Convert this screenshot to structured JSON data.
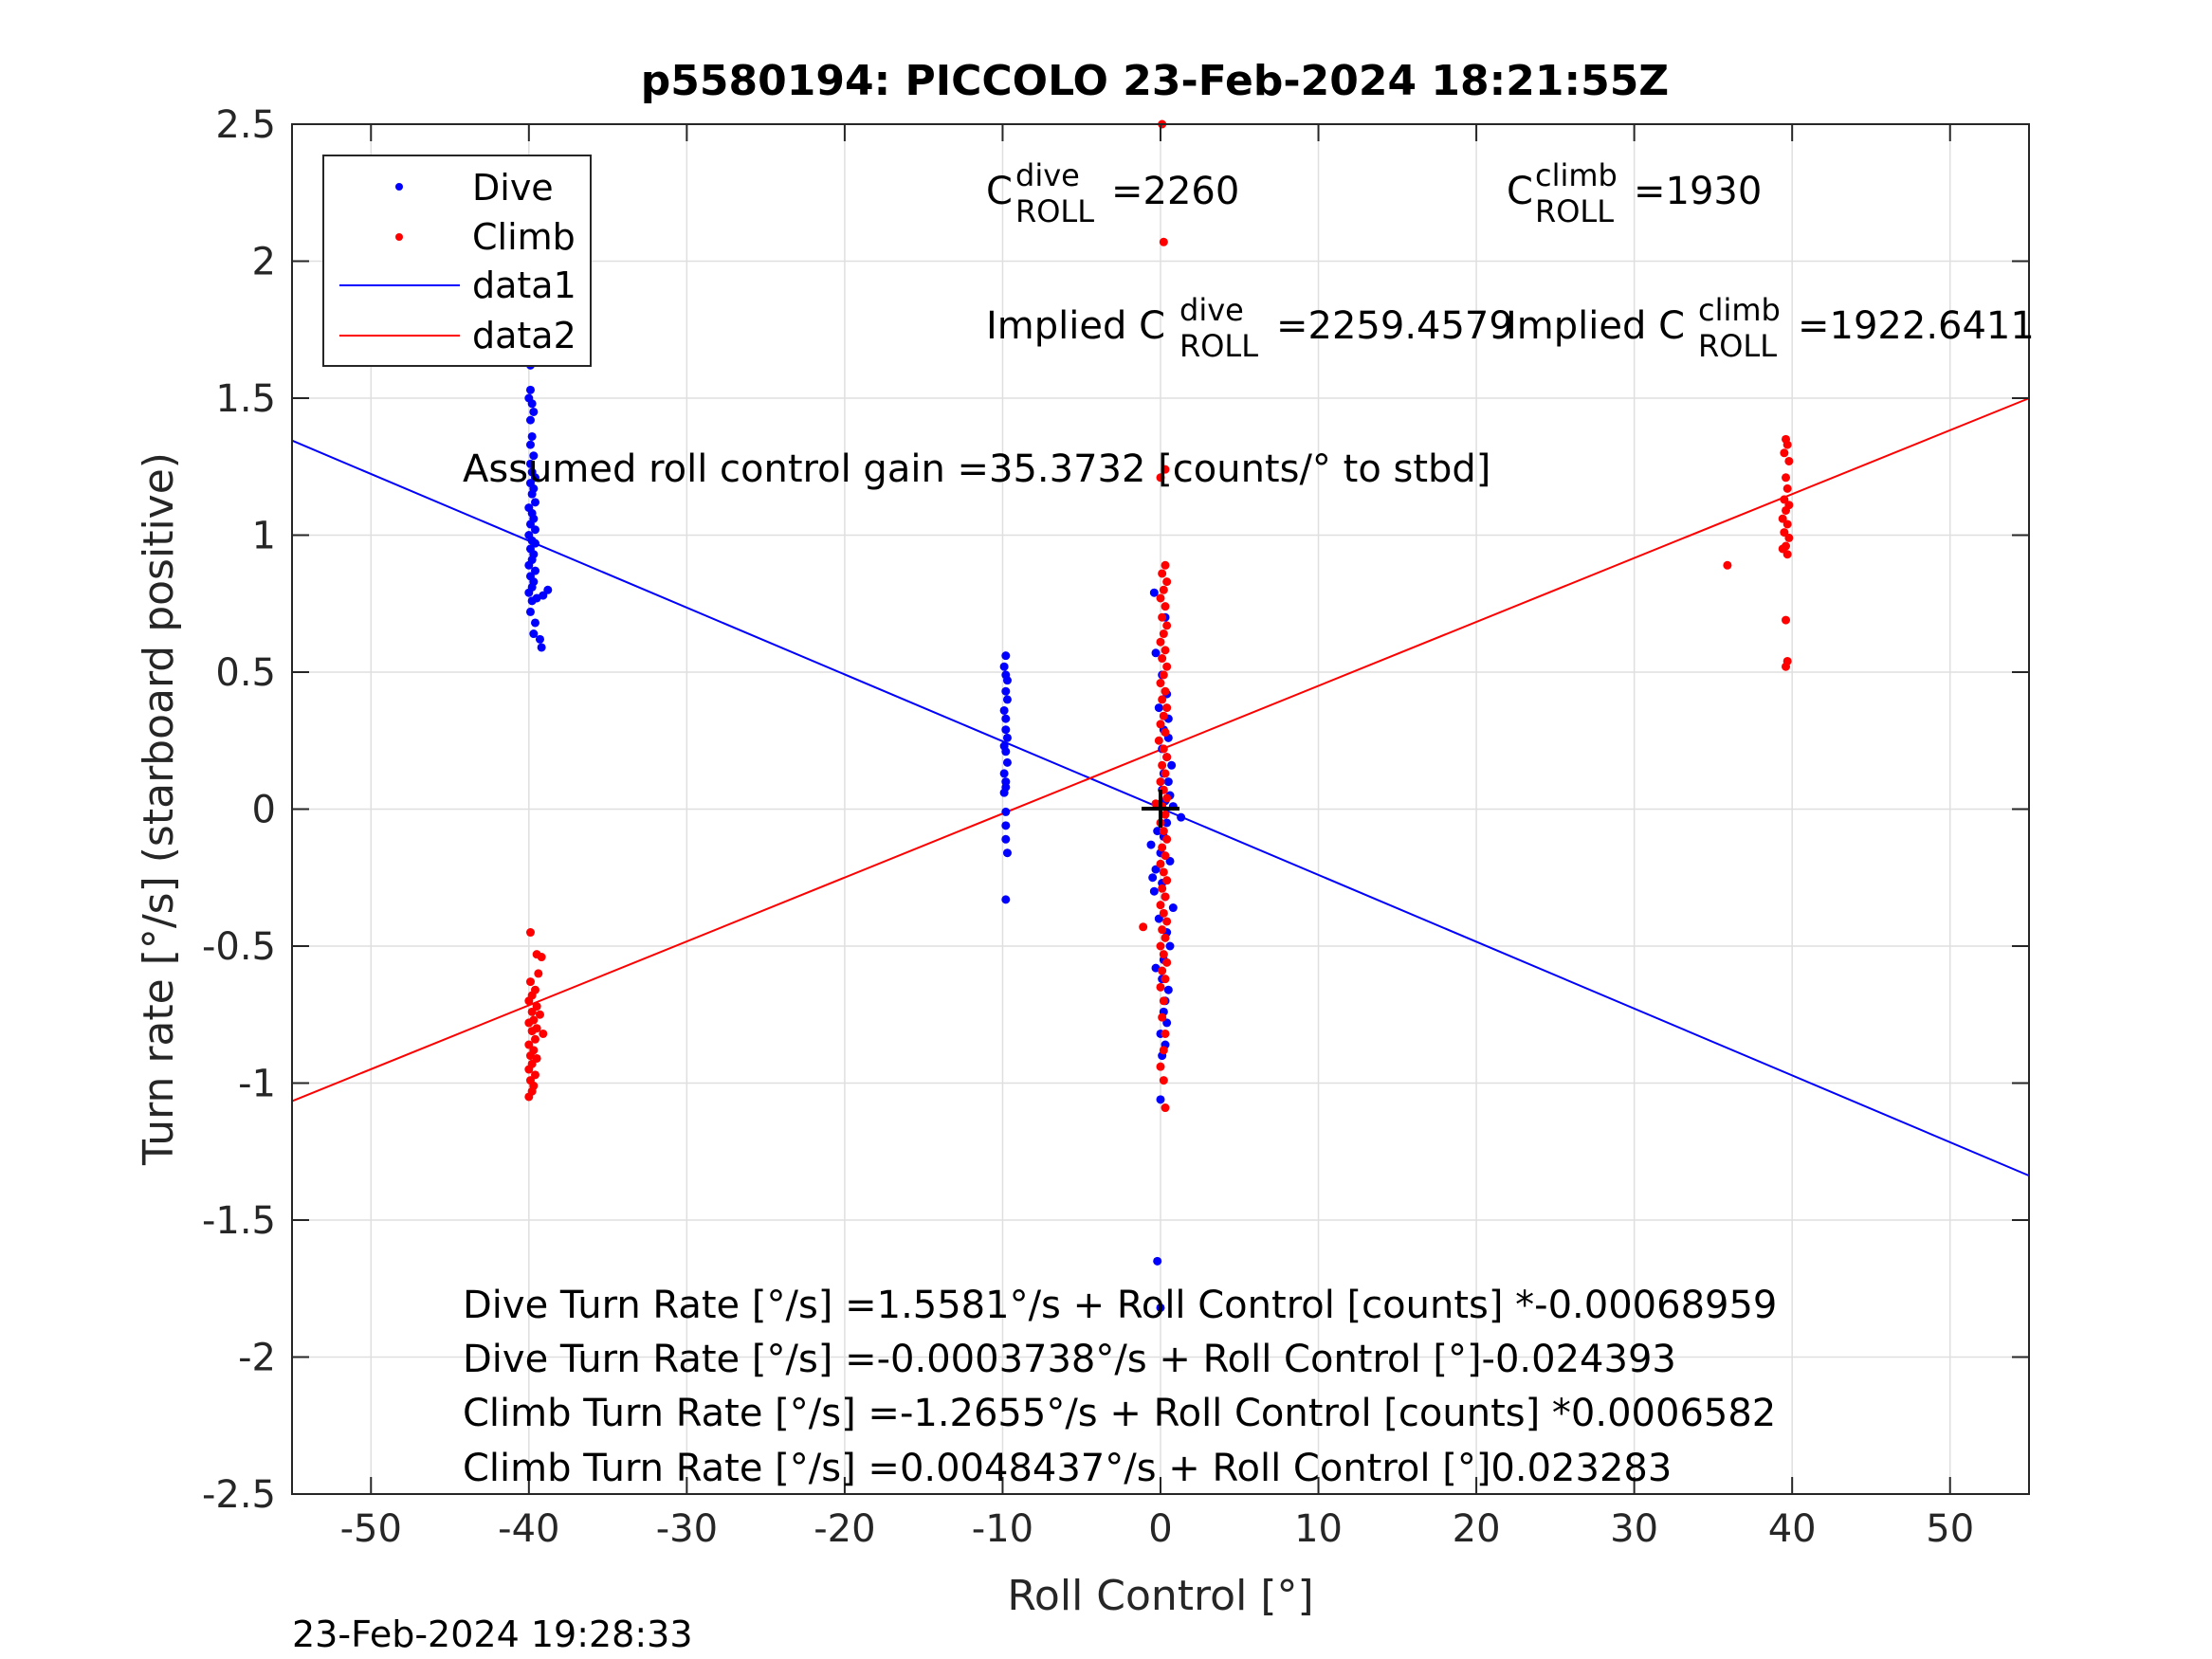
{
  "figure": {
    "timestamp": "23-Feb-2024 19:28:33"
  },
  "chart_data": {
    "type": "scatter",
    "title": "p5580194: PICCOLO 23-Feb-2024 18:21:55Z",
    "xlabel": "Roll Control [°]",
    "ylabel": "Turn rate [°/s] (starboard positive)",
    "xlim": [
      -55,
      55
    ],
    "ylim": [
      -2.5,
      2.5
    ],
    "xticks": [
      -50,
      -40,
      -30,
      -20,
      -10,
      0,
      10,
      20,
      30,
      40,
      50
    ],
    "yticks": [
      -2.5,
      -2,
      -1.5,
      -1,
      -0.5,
      0,
      0.5,
      1,
      1.5,
      2,
      2.5
    ],
    "grid": true,
    "legend": {
      "placement": "top-left",
      "entries": [
        "Dive",
        "Climb",
        "data1",
        "data2"
      ]
    },
    "colors": {
      "dive": "#0000ff",
      "climb": "#ff0000",
      "zero_marker": "#000000"
    },
    "series": [
      {
        "name": "Dive",
        "kind": "points",
        "points": [
          [
            -39.9,
            1.62
          ],
          [
            -39.9,
            1.53
          ],
          [
            -40.0,
            1.5
          ],
          [
            -39.8,
            1.48
          ],
          [
            -39.7,
            1.45
          ],
          [
            -39.9,
            1.42
          ],
          [
            -39.8,
            1.36
          ],
          [
            -39.9,
            1.33
          ],
          [
            -39.7,
            1.29
          ],
          [
            -39.9,
            1.26
          ],
          [
            -39.8,
            1.23
          ],
          [
            -39.6,
            1.21
          ],
          [
            -39.9,
            1.19
          ],
          [
            -39.7,
            1.17
          ],
          [
            -39.8,
            1.15
          ],
          [
            -39.6,
            1.12
          ],
          [
            -40.0,
            1.1
          ],
          [
            -39.8,
            1.08
          ],
          [
            -39.7,
            1.06
          ],
          [
            -39.9,
            1.04
          ],
          [
            -39.6,
            1.02
          ],
          [
            -40.0,
            1.0
          ],
          [
            -39.8,
            0.98
          ],
          [
            -39.6,
            0.97
          ],
          [
            -39.9,
            0.95
          ],
          [
            -39.7,
            0.93
          ],
          [
            -39.8,
            0.91
          ],
          [
            -40.0,
            0.89
          ],
          [
            -39.6,
            0.87
          ],
          [
            -39.9,
            0.85
          ],
          [
            -39.7,
            0.83
          ],
          [
            -39.8,
            0.81
          ],
          [
            -40.0,
            0.79
          ],
          [
            -39.5,
            0.77
          ],
          [
            -39.8,
            0.76
          ],
          [
            -39.1,
            0.78
          ],
          [
            -38.8,
            0.8
          ],
          [
            -39.9,
            0.72
          ],
          [
            -39.6,
            0.68
          ],
          [
            -39.7,
            0.64
          ],
          [
            -39.3,
            0.62
          ],
          [
            -39.2,
            0.59
          ],
          [
            -9.8,
            0.56
          ],
          [
            -9.9,
            0.52
          ],
          [
            -9.8,
            0.49
          ],
          [
            -9.7,
            0.47
          ],
          [
            -9.8,
            0.43
          ],
          [
            -9.7,
            0.4
          ],
          [
            -9.9,
            0.36
          ],
          [
            -9.8,
            0.33
          ],
          [
            -9.8,
            0.29
          ],
          [
            -9.7,
            0.26
          ],
          [
            -9.9,
            0.23
          ],
          [
            -9.8,
            0.21
          ],
          [
            -9.7,
            0.17
          ],
          [
            -9.9,
            0.13
          ],
          [
            -9.8,
            0.1
          ],
          [
            -9.8,
            0.08
          ],
          [
            -9.9,
            0.06
          ],
          [
            -9.8,
            -0.01
          ],
          [
            -9.8,
            -0.06
          ],
          [
            -9.8,
            -0.11
          ],
          [
            -9.7,
            -0.16
          ],
          [
            -9.8,
            -0.33
          ],
          [
            -0.4,
            0.79
          ],
          [
            0.3,
            0.7
          ],
          [
            -0.3,
            0.57
          ],
          [
            0.1,
            0.49
          ],
          [
            0.4,
            0.42
          ],
          [
            -0.1,
            0.37
          ],
          [
            0.5,
            0.33
          ],
          [
            0.2,
            0.29
          ],
          [
            0.5,
            0.26
          ],
          [
            0.1,
            0.22
          ],
          [
            0.4,
            0.19
          ],
          [
            0.7,
            0.16
          ],
          [
            0.2,
            0.13
          ],
          [
            0.5,
            0.1
          ],
          [
            0.1,
            0.07
          ],
          [
            0.6,
            0.05
          ],
          [
            0.3,
            0.03
          ],
          [
            0.0,
            0.02
          ],
          [
            0.8,
            0.01
          ],
          [
            1.3,
            -0.03
          ],
          [
            0.4,
            -0.05
          ],
          [
            -0.2,
            -0.08
          ],
          [
            0.2,
            -0.1
          ],
          [
            -0.6,
            -0.13
          ],
          [
            0.0,
            -0.16
          ],
          [
            0.6,
            -0.19
          ],
          [
            -0.3,
            -0.22
          ],
          [
            -0.5,
            -0.25
          ],
          [
            0.1,
            -0.27
          ],
          [
            -0.4,
            -0.3
          ],
          [
            0.3,
            -0.32
          ],
          [
            0.8,
            -0.36
          ],
          [
            -0.1,
            -0.4
          ],
          [
            0.4,
            -0.45
          ],
          [
            0.6,
            -0.5
          ],
          [
            0.2,
            -0.55
          ],
          [
            -0.3,
            -0.58
          ],
          [
            0.1,
            -0.62
          ],
          [
            0.5,
            -0.66
          ],
          [
            0.3,
            -0.7
          ],
          [
            0.2,
            -0.74
          ],
          [
            0.4,
            -0.78
          ],
          [
            0.0,
            -0.82
          ],
          [
            0.3,
            -0.86
          ],
          [
            0.1,
            -0.9
          ],
          [
            0.0,
            -1.06
          ],
          [
            -0.2,
            -1.65
          ],
          [
            0.0,
            -1.82
          ]
        ]
      },
      {
        "name": "Climb",
        "kind": "points",
        "points": [
          [
            -39.9,
            -0.45
          ],
          [
            -39.5,
            -0.53
          ],
          [
            -39.2,
            -0.54
          ],
          [
            -39.4,
            -0.6
          ],
          [
            -39.9,
            -0.63
          ],
          [
            -39.6,
            -0.66
          ],
          [
            -39.8,
            -0.68
          ],
          [
            -40.0,
            -0.7
          ],
          [
            -39.5,
            -0.72
          ],
          [
            -39.8,
            -0.74
          ],
          [
            -39.3,
            -0.75
          ],
          [
            -39.7,
            -0.77
          ],
          [
            -40.0,
            -0.78
          ],
          [
            -39.5,
            -0.8
          ],
          [
            -39.8,
            -0.81
          ],
          [
            -39.1,
            -0.82
          ],
          [
            -39.6,
            -0.84
          ],
          [
            -40.0,
            -0.86
          ],
          [
            -39.7,
            -0.88
          ],
          [
            -39.9,
            -0.9
          ],
          [
            -39.5,
            -0.91
          ],
          [
            -39.8,
            -0.93
          ],
          [
            -40.0,
            -0.95
          ],
          [
            -39.6,
            -0.97
          ],
          [
            -39.9,
            -0.99
          ],
          [
            -39.7,
            -1.01
          ],
          [
            -39.8,
            -1.03
          ],
          [
            -40.0,
            -1.05
          ],
          [
            35.9,
            0.89
          ],
          [
            39.6,
            1.35
          ],
          [
            39.7,
            1.33
          ],
          [
            39.5,
            1.3
          ],
          [
            39.8,
            1.27
          ],
          [
            39.6,
            1.21
          ],
          [
            39.7,
            1.17
          ],
          [
            39.5,
            1.13
          ],
          [
            39.8,
            1.11
          ],
          [
            39.6,
            1.09
          ],
          [
            39.4,
            1.06
          ],
          [
            39.7,
            1.04
          ],
          [
            39.5,
            1.01
          ],
          [
            39.8,
            0.99
          ],
          [
            39.6,
            0.96
          ],
          [
            39.4,
            0.95
          ],
          [
            39.7,
            0.93
          ],
          [
            39.6,
            0.69
          ],
          [
            39.7,
            0.54
          ],
          [
            39.6,
            0.52
          ],
          [
            0.1,
            2.5
          ],
          [
            0.2,
            2.07
          ],
          [
            0.3,
            1.24
          ],
          [
            0.0,
            1.21
          ],
          [
            0.3,
            0.89
          ],
          [
            0.1,
            0.86
          ],
          [
            0.4,
            0.83
          ],
          [
            0.2,
            0.8
          ],
          [
            0.0,
            0.77
          ],
          [
            0.3,
            0.74
          ],
          [
            0.1,
            0.7
          ],
          [
            0.4,
            0.67
          ],
          [
            0.2,
            0.64
          ],
          [
            0.0,
            0.61
          ],
          [
            0.3,
            0.58
          ],
          [
            0.1,
            0.55
          ],
          [
            0.4,
            0.52
          ],
          [
            0.2,
            0.49
          ],
          [
            0.0,
            0.46
          ],
          [
            0.3,
            0.43
          ],
          [
            0.1,
            0.4
          ],
          [
            0.4,
            0.37
          ],
          [
            0.2,
            0.34
          ],
          [
            0.0,
            0.31
          ],
          [
            0.3,
            0.28
          ],
          [
            -0.1,
            0.25
          ],
          [
            0.2,
            0.22
          ],
          [
            0.4,
            0.19
          ],
          [
            0.1,
            0.16
          ],
          [
            0.3,
            0.13
          ],
          [
            0.0,
            0.1
          ],
          [
            0.2,
            0.07
          ],
          [
            0.4,
            0.04
          ],
          [
            0.1,
            0.01
          ],
          [
            0.3,
            -0.02
          ],
          [
            0.0,
            -0.05
          ],
          [
            0.2,
            -0.08
          ],
          [
            0.4,
            -0.11
          ],
          [
            0.1,
            -0.14
          ],
          [
            0.3,
            -0.17
          ],
          [
            0.0,
            -0.2
          ],
          [
            0.2,
            -0.23
          ],
          [
            0.4,
            -0.26
          ],
          [
            0.1,
            -0.29
          ],
          [
            0.3,
            -0.32
          ],
          [
            0.0,
            -0.35
          ],
          [
            0.2,
            -0.38
          ],
          [
            0.4,
            -0.41
          ],
          [
            0.1,
            -0.44
          ],
          [
            -1.1,
            -0.43
          ],
          [
            0.3,
            -0.47
          ],
          [
            0.0,
            -0.5
          ],
          [
            0.2,
            -0.53
          ],
          [
            0.4,
            -0.56
          ],
          [
            0.1,
            -0.59
          ],
          [
            0.3,
            -0.62
          ],
          [
            0.0,
            -0.65
          ],
          [
            0.2,
            -0.7
          ],
          [
            0.1,
            -0.76
          ],
          [
            0.3,
            -0.82
          ],
          [
            0.2,
            -0.88
          ],
          [
            0.0,
            -0.94
          ],
          [
            0.2,
            -0.99
          ],
          [
            0.3,
            -1.09
          ],
          [
            -0.3,
            0.02
          ]
        ]
      },
      {
        "name": "data1",
        "kind": "line",
        "x": [
          -55,
          55
        ],
        "y": [
          1.3453,
          -1.3378
        ]
      },
      {
        "name": "data2",
        "kind": "line",
        "x": [
          -55,
          55
        ],
        "y": [
          -1.0659,
          1.4996
        ]
      }
    ],
    "annotations": {
      "c_roll_dive": {
        "base": "C",
        "sup": "dive",
        "sub": "ROLL",
        "text": "=2260"
      },
      "c_roll_climb": {
        "base": "C",
        "sup": "climb",
        "sub": "ROLL",
        "text": "=1930"
      },
      "implied_dive": {
        "prefix": "Implied C",
        "sup": "dive",
        "sub": "ROLL",
        "text": "=2259.4579"
      },
      "implied_climb": {
        "prefix": "Implied C",
        "sup": "climb",
        "sub": "ROLL",
        "text": "=1922.6411"
      },
      "gain": "Assumed roll control gain =35.3732 [counts/° to stbd]",
      "fits": [
        "Dive Turn Rate [°/s] =1.5581°/s + Roll Control [counts] *-0.00068959",
        "Dive Turn Rate [°/s] =-0.0003738°/s + Roll Control [°]-0.024393",
        "Climb Turn Rate [°/s] =-1.2655°/s + Roll Control [counts] *0.0006582",
        "Climb Turn Rate [°/s] =0.0048437°/s + Roll Control [°]0.023283"
      ]
    }
  }
}
